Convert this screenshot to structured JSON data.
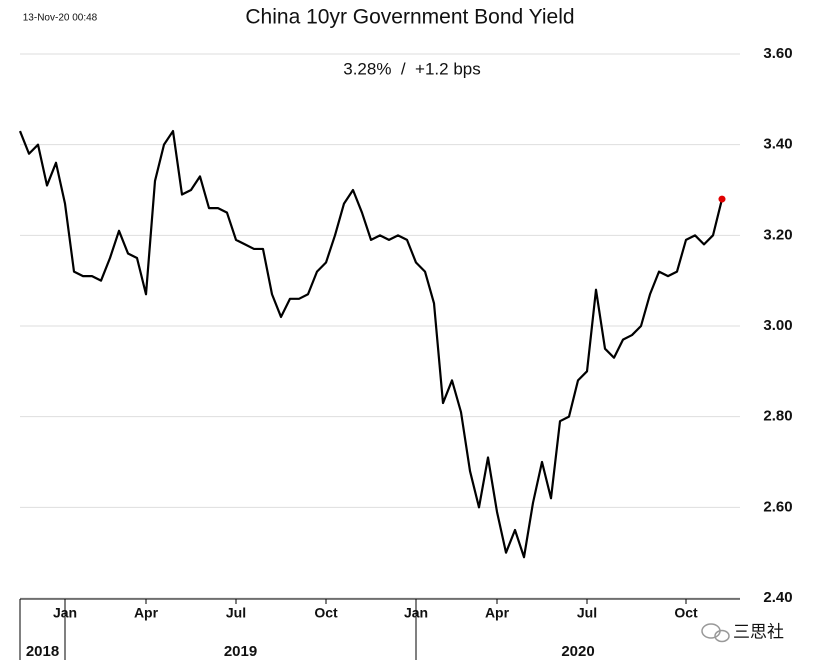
{
  "chart_data": {
    "type": "line",
    "title": "China 10yr Government Bond Yield",
    "subtitle": "3.28%  /  +1.2 bps",
    "timestamp": "13-Nov-20 00:48",
    "watermark": "三思社",
    "categories": [
      null,
      null,
      null,
      null,
      null,
      "Jan",
      null,
      null,
      null,
      null,
      null,
      null,
      null,
      null,
      "Apr",
      null,
      null,
      null,
      null,
      null,
      null,
      null,
      null,
      null,
      "Jul",
      null,
      null,
      null,
      null,
      null,
      null,
      null,
      null,
      null,
      "Oct",
      null,
      null,
      null,
      null,
      null,
      null,
      null,
      null,
      null,
      "Jan",
      null,
      null,
      null,
      null,
      null,
      null,
      null,
      null,
      "Apr",
      null,
      null,
      null,
      null,
      null,
      null,
      null,
      null,
      null,
      "Jul",
      null,
      null,
      null,
      null,
      null,
      null,
      null,
      null,
      null,
      null,
      "Oct",
      null,
      null,
      null,
      null
    ],
    "year_labels": [
      "2018",
      "2019",
      "2020"
    ],
    "series": [
      {
        "name": "China 10yr",
        "color": "#000000",
        "values": [
          3.43,
          3.38,
          3.4,
          3.31,
          3.36,
          3.27,
          3.12,
          3.11,
          3.11,
          3.1,
          3.15,
          3.21,
          3.16,
          3.15,
          3.07,
          3.32,
          3.4,
          3.43,
          3.29,
          3.3,
          3.33,
          3.26,
          3.26,
          3.25,
          3.19,
          3.18,
          3.17,
          3.17,
          3.07,
          3.02,
          3.06,
          3.06,
          3.07,
          3.12,
          3.14,
          3.2,
          3.27,
          3.3,
          3.25,
          3.19,
          3.2,
          3.19,
          3.2,
          3.19,
          3.14,
          3.12,
          3.05,
          2.83,
          2.88,
          2.81,
          2.68,
          2.6,
          2.71,
          2.59,
          2.5,
          2.55,
          2.49,
          2.61,
          2.7,
          2.62,
          2.79,
          2.8,
          2.88,
          2.9,
          3.08,
          2.95,
          2.93,
          2.97,
          2.98,
          3.0,
          3.07,
          3.12,
          3.11,
          3.12,
          3.19,
          3.2,
          3.18,
          3.2,
          3.28
        ]
      }
    ],
    "last_point_color": "#e00000",
    "ylim": [
      2.4,
      3.6
    ],
    "yticks": [
      {
        "value": 2.4,
        "label": "2.40"
      },
      {
        "value": 2.6,
        "label": "2.60"
      },
      {
        "value": 2.8,
        "label": "2.80"
      },
      {
        "value": 3.0,
        "label": "3.00"
      },
      {
        "value": 3.2,
        "label": "3.20"
      },
      {
        "value": 3.4,
        "label": "3.40"
      },
      {
        "value": 3.6,
        "label": "3.60"
      }
    ],
    "grid": true
  }
}
